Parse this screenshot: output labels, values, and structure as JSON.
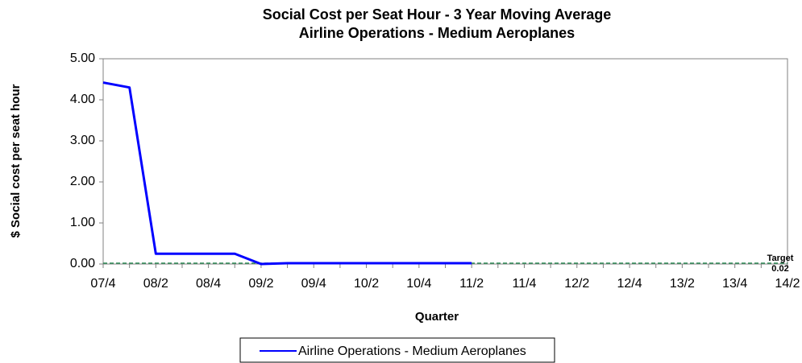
{
  "chart_data": {
    "type": "line",
    "title": "Social Cost per Seat Hour - 3 Year Moving Average",
    "subtitle": "Airline Operations - Medium Aeroplanes",
    "x_label": "Quarter",
    "y_label": "$ Social cost per seat hour",
    "categories": [
      "07/4",
      null,
      "08/2",
      null,
      "08/4",
      null,
      "09/2",
      null,
      "09/4",
      null,
      "10/2",
      null,
      "10/4",
      null,
      "11/2",
      null,
      "11/4",
      null,
      "12/2",
      null,
      "12/4",
      null,
      "13/2",
      null,
      "13/4",
      null,
      "14/2"
    ],
    "series": [
      {
        "name": "Airline Operations - Medium Aeroplanes",
        "color": "#0000ff",
        "values": [
          4.42,
          4.3,
          0.25,
          0.25,
          0.25,
          0.25,
          0,
          0.02,
          0.02,
          0.02,
          0.02,
          0.02,
          0.02,
          0.02,
          0.02,
          null,
          null,
          null,
          null,
          null,
          null,
          null,
          null,
          null,
          null,
          null,
          null
        ]
      }
    ],
    "target": {
      "name": "Target",
      "value": 0.02,
      "color": "#2e8b57"
    },
    "ylim": [
      0,
      5
    ],
    "yticks": [
      {
        "value": 0,
        "label": "0.00"
      },
      {
        "value": 1,
        "label": "1.00"
      },
      {
        "value": 2,
        "label": "2.00"
      },
      {
        "value": 3,
        "label": "3.00"
      },
      {
        "value": 4,
        "label": "4.00"
      },
      {
        "value": 5,
        "label": "5.00"
      }
    ],
    "legend": "bottom"
  }
}
